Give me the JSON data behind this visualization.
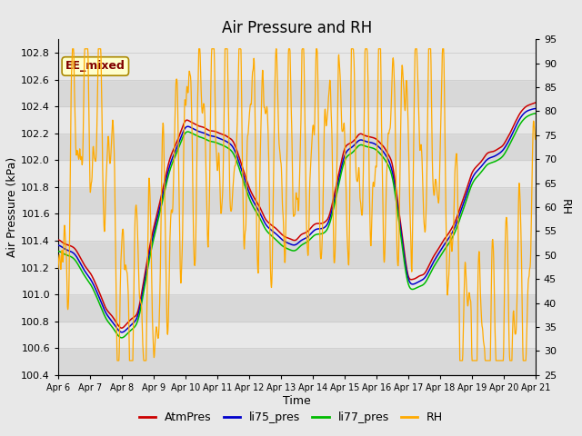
{
  "title": "Air Pressure and RH",
  "xlabel": "Time",
  "ylabel_left": "Air Pressure (kPa)",
  "ylabel_right": "RH",
  "ylim_left": [
    100.4,
    102.9
  ],
  "ylim_right": [
    25,
    95
  ],
  "yticks_left": [
    100.4,
    100.6,
    100.8,
    101.0,
    101.2,
    101.4,
    101.6,
    101.8,
    102.0,
    102.2,
    102.4,
    102.6,
    102.8
  ],
  "yticks_right": [
    25,
    30,
    35,
    40,
    45,
    50,
    55,
    60,
    65,
    70,
    75,
    80,
    85,
    90,
    95
  ],
  "xtick_labels": [
    "Apr 6",
    "Apr 7",
    "Apr 8",
    "Apr 9",
    "Apr 10",
    "Apr 11",
    "Apr 12",
    "Apr 13",
    "Apr 14",
    "Apr 15",
    "Apr 16",
    "Apr 17",
    "Apr 18",
    "Apr 19",
    "Apr 20",
    "Apr 21"
  ],
  "colors": {
    "AtmPres": "#cc0000",
    "li75_pres": "#0000cc",
    "li77_pres": "#00bb00",
    "RH": "#ffaa00"
  },
  "annotation_text": "EE_mixed",
  "annotation_color": "#800000",
  "annotation_bg": "#ffffcc",
  "annotation_edge": "#aa8800",
  "bg_color": "#e8e8e8",
  "band_dark": "#d8d8d8",
  "band_light": "#e8e8e8",
  "grid_line_color": "#cccccc",
  "title_fontsize": 12,
  "axis_fontsize": 9,
  "tick_fontsize": 8,
  "legend_fontsize": 9
}
